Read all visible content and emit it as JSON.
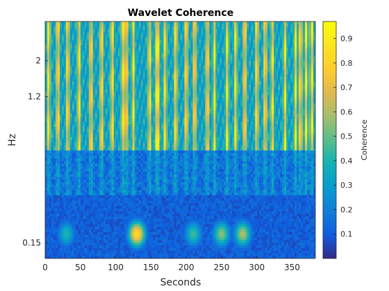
{
  "chart_data": {
    "type": "heatmap",
    "title": "Wavelet Coherence",
    "xlabel": "Seconds",
    "ylabel": "Hz",
    "xlim": [
      0,
      383
    ],
    "x_ticks": [
      0,
      50,
      100,
      150,
      200,
      250,
      300,
      350
    ],
    "y_scale": "log",
    "y_ticks": [
      0.15,
      1.2,
      2
    ],
    "y_tick_labels": [
      "0.15",
      "1.2",
      "2"
    ],
    "colorbar": {
      "label": "Coherence",
      "range": [
        0,
        0.97
      ],
      "ticks": [
        0.1,
        0.2,
        0.3,
        0.4,
        0.5,
        0.6,
        0.7,
        0.8,
        0.9
      ],
      "tick_labels": [
        "0.1",
        "0.2",
        "0.3",
        "0.4",
        "0.5",
        "0.6",
        "0.7",
        "0.8",
        "0.9"
      ]
    },
    "colormap": "parula",
    "high_frequency_band_yellow_columns_at_seconds": [
      5,
      18,
      32,
      48,
      65,
      80,
      95,
      110,
      115,
      125,
      148,
      158,
      160,
      170,
      185,
      200,
      212,
      230,
      240,
      258,
      270,
      283,
      300,
      312,
      322,
      340,
      355,
      362,
      370,
      378
    ],
    "low_frequency_blobs": [
      {
        "t": 130,
        "coherence": 0.85
      },
      {
        "t": 250,
        "coherence": 0.55
      },
      {
        "t": 280,
        "coherence": 0.6
      },
      {
        "t": 210,
        "coherence": 0.45
      },
      {
        "t": 30,
        "coherence": 0.4
      }
    ]
  }
}
